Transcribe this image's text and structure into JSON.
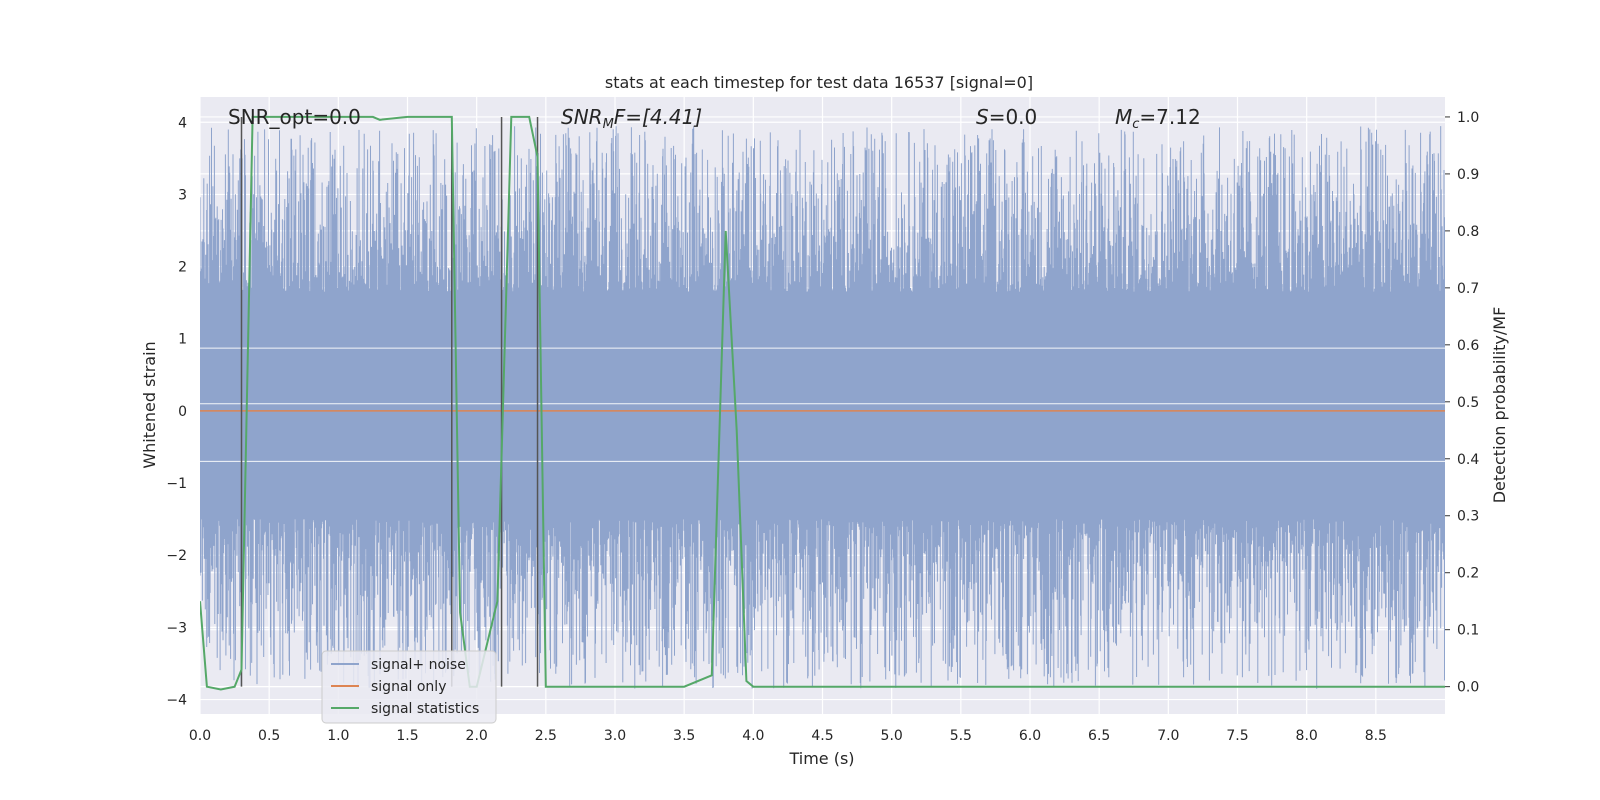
{
  "chart_data": {
    "type": "line",
    "title": "stats at each timestep for test data 16537 [signal=0]",
    "xlabel": "Time (s)",
    "ylabel": "Whitened strain",
    "y2label": "Detection probability/MF",
    "xlim": [
      0.0,
      9.0
    ],
    "ylim": [
      -4.2,
      4.35
    ],
    "y2lim": [
      -0.048,
      1.035
    ],
    "x_ticks": [
      "0.0",
      "0.5",
      "1.0",
      "1.5",
      "2.0",
      "2.5",
      "3.0",
      "3.5",
      "4.0",
      "4.5",
      "5.0",
      "5.5",
      "6.0",
      "6.5",
      "7.0",
      "7.5",
      "8.0",
      "8.5"
    ],
    "y_ticks": [
      "−4",
      "−3",
      "−2",
      "−1",
      "0",
      "1",
      "2",
      "3",
      "4"
    ],
    "y2_ticks": [
      "0.0",
      "0.1",
      "0.2",
      "0.3",
      "0.4",
      "0.5",
      "0.6",
      "0.7",
      "0.8",
      "0.9",
      "1.0"
    ],
    "grid": true,
    "legend_position": "lower-left",
    "annotations": {
      "snr_opt": "SNR_opt=0.0",
      "snr_mf_prefix": "SNR",
      "snr_mf_sub": "M",
      "snr_mf_suffix": "F=[4.41]",
      "s_name": "S",
      "s_value": "=0.0",
      "mc_name": "M",
      "mc_sub": "c",
      "mc_value": "=7.12"
    },
    "series": [
      {
        "name": "signal+ noise",
        "color": "#8fa4cc",
        "kind": "dense noise trace",
        "core_range": [
          -1.5,
          1.65
        ],
        "approx_max": 3.95,
        "approx_min": -3.85
      },
      {
        "name": "signal only",
        "color": "#dd8452",
        "value": 0.0
      },
      {
        "name": "signal statistics",
        "color": "#55a868",
        "axis": "right",
        "x": [
          0.0,
          0.05,
          0.15,
          0.25,
          0.3,
          0.38,
          0.5,
          1.0,
          1.25,
          1.3,
          1.5,
          1.82,
          1.88,
          1.95,
          2.0,
          2.15,
          2.25,
          2.38,
          2.44,
          2.5,
          2.6,
          3.0,
          3.5,
          3.7,
          3.8,
          3.88,
          3.95,
          4.0,
          9.0
        ],
        "y": [
          0.15,
          0.0,
          -0.005,
          0.0,
          0.03,
          1.0,
          1.0,
          1.0,
          1.0,
          0.995,
          1.0,
          1.0,
          0.13,
          0.0,
          0.0,
          0.15,
          1.0,
          1.0,
          0.93,
          0.0,
          0.0,
          0.0,
          0.0,
          0.02,
          0.8,
          0.45,
          0.01,
          0.0,
          0.0
        ]
      }
    ],
    "vertical_markers_x": [
      0.3,
      1.82,
      2.18,
      2.44
    ]
  }
}
